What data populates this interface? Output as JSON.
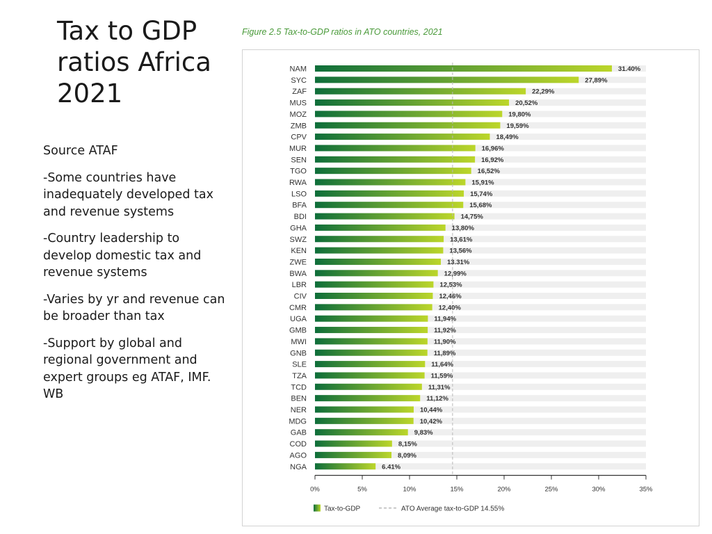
{
  "slide": {
    "title_lines": [
      "Tax to GDP",
      "ratios Africa",
      "2021"
    ],
    "bullets": [
      "Source ATAF",
      "-Some countries have inadequately developed tax and revenue systems",
      "-Country leadership to develop domestic tax and revenue systems",
      "-Varies by yr and revenue can be broader than tax",
      "-Support by global and regional government and expert groups eg ATAF, IMF. WB"
    ]
  },
  "colors": {
    "bar_dark": "#0e6e3a",
    "bar_light": "#bcd62a",
    "track": "#efefef",
    "avg_line": "#b8b8b8",
    "caption": "#4a9a3a"
  },
  "chart_data": {
    "type": "bar",
    "orientation": "horizontal",
    "title": "Figure 2.5 Tax-to-GDP ratios in ATO countries, 2021",
    "categories": [
      "NAM",
      "SYC",
      "ZAF",
      "MUS",
      "MOZ",
      "ZMB",
      "CPV",
      "MUR",
      "SEN",
      "TGO",
      "RWA",
      "LSO",
      "BFA",
      "BDI",
      "GHA",
      "SWZ",
      "KEN",
      "ZWE",
      "BWA",
      "LBR",
      "CIV",
      "CMR",
      "UGA",
      "GMB",
      "MWI",
      "GNB",
      "SLE",
      "TZA",
      "TCD",
      "BEN",
      "NER",
      "MDG",
      "GAB",
      "COD",
      "AGO",
      "NGA"
    ],
    "values": [
      31.4,
      27.89,
      22.29,
      20.52,
      19.8,
      19.59,
      18.49,
      16.96,
      16.92,
      16.52,
      15.91,
      15.74,
      15.68,
      14.75,
      13.8,
      13.61,
      13.56,
      13.31,
      12.99,
      12.53,
      12.46,
      12.4,
      11.94,
      11.92,
      11.9,
      11.89,
      11.64,
      11.59,
      11.31,
      11.12,
      10.44,
      10.42,
      9.83,
      8.15,
      8.09,
      6.41
    ],
    "value_labels": [
      "31.40%",
      "27,89%",
      "22,29%",
      "20,52%",
      "19,80%",
      "19,59%",
      "18,49%",
      "16,96%",
      "16,92%",
      "16,52%",
      "15,91%",
      "15,74%",
      "15,68%",
      "14,75%",
      "13,80%",
      "13,61%",
      "13,56%",
      "13.31%",
      "12,99%",
      "12,53%",
      "12,46%",
      "12,40%",
      "11,94%",
      "11,92%",
      "11,90%",
      "11,89%",
      "11,64%",
      "11,59%",
      "11,31%",
      "11,12%",
      "10,44%",
      "10,42%",
      "9,83%",
      "8,15%",
      "8,09%",
      "6.41%"
    ],
    "x_ticks": [
      0,
      5,
      10,
      15,
      20,
      25,
      30,
      35
    ],
    "x_tick_labels": [
      "0%",
      "5%",
      "10%",
      "15%",
      "20%",
      "25%",
      "30%",
      "35%"
    ],
    "xlim": [
      0,
      35
    ],
    "reference_line": {
      "value": 14.55,
      "label": "ATO Average tax-to-GDP 14.55%"
    },
    "legend": [
      {
        "name": "Tax-to-GDP",
        "kind": "bar"
      },
      {
        "name": "ATO Average tax-to-GDP 14.55%",
        "kind": "dashed-line"
      }
    ],
    "legend_position": "bottom-left"
  }
}
